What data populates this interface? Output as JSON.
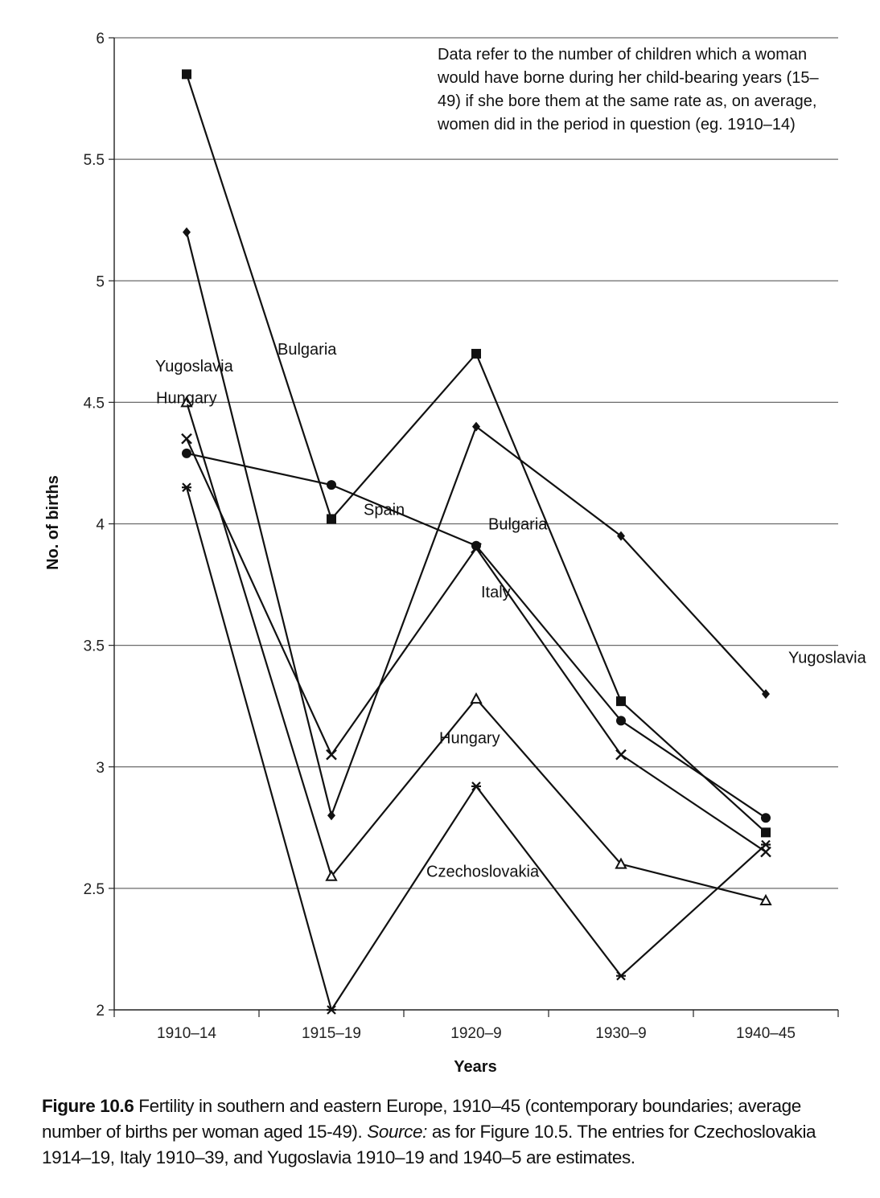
{
  "chart_data": {
    "type": "line",
    "categories": [
      "1910–14",
      "1915–19",
      "1920–9",
      "1930–9",
      "1940–45"
    ],
    "xlabel": "Years",
    "ylabel": "No. of births",
    "ylim": [
      2,
      6
    ],
    "yticks": [
      "2",
      "2.5",
      "3",
      "3.5",
      "4",
      "4.5",
      "5",
      "5.5",
      "6"
    ],
    "grid": "horizontal",
    "note": "Data refer to the number of children which a woman would have borne during her child-bearing years (15–49) if she bore them at the same rate as, on average, women did in the period in question (eg. 1910–14)",
    "series": [
      {
        "name": "Bulgaria",
        "marker": "square",
        "values": [
          5.85,
          4.02,
          4.7,
          3.27,
          2.73
        ]
      },
      {
        "name": "Yugoslavia",
        "marker": "diamond",
        "values": [
          5.2,
          2.8,
          4.4,
          3.95,
          3.3
        ]
      },
      {
        "name": "Spain",
        "marker": "circle",
        "values": [
          4.29,
          4.16,
          3.91,
          3.19,
          2.79
        ]
      },
      {
        "name": "Hungary",
        "marker": "triangle",
        "values": [
          4.5,
          2.55,
          3.28,
          2.6,
          2.45
        ]
      },
      {
        "name": "Italy",
        "marker": "x",
        "values": [
          4.35,
          3.05,
          3.9,
          3.05,
          2.65
        ]
      },
      {
        "name": "Czechoslovakia",
        "marker": "star",
        "values": [
          4.15,
          2.0,
          2.92,
          2.14,
          2.68
        ]
      }
    ],
    "annotations": [
      {
        "text": "Bulgaria",
        "x": "1915–19",
        "y": 4.72
      },
      {
        "text": "Yugoslavia",
        "x": "1910–14",
        "y": 4.65
      },
      {
        "text": "Hungary",
        "x": "1910–14",
        "y": 4.52
      },
      {
        "text": "Spain",
        "x": "1915–19",
        "y": 4.06
      },
      {
        "text": "Bulgaria",
        "x": "1920–9",
        "y": 4.0
      },
      {
        "text": "Italy",
        "x": "1920–9",
        "y": 3.72
      },
      {
        "text": "Yugoslavia",
        "x": "1940–45",
        "y": 3.45
      },
      {
        "text": "Hungary",
        "x": "1920–9",
        "y": 3.12
      },
      {
        "text": "Czechoslovakia",
        "x": "1920–9",
        "y": 2.57
      }
    ]
  },
  "caption": {
    "figure_label": "Figure 10.6",
    "text": " Fertility in southern and eastern Europe, 1910–45 (contemporary boundaries; average number of births per woman aged 15-49). ",
    "source_label": "Source:",
    "source_text": " as for Figure 10.5. The entries for Czechoslovakia 1914–19, Italy 1910–39, and Yugoslavia 1910–19 and 1940–5 are estimates."
  }
}
